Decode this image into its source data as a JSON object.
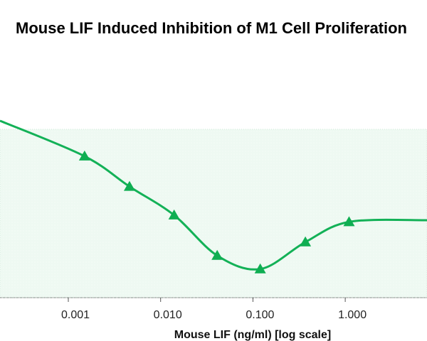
{
  "chart_data": {
    "type": "line",
    "title": "Mouse LIF Induced Inhibition of M1 Cell Proliferation",
    "xlabel": "Mouse LIF (ng/ml) [log scale]",
    "ylabel": "",
    "xscale": "log",
    "xticks": [
      0.001,
      0.01,
      0.1,
      1.0
    ],
    "xtick_labels": [
      "0.001",
      "0.010",
      "0.100",
      "1.000"
    ],
    "ylim": [
      0,
      100
    ],
    "grid": false,
    "series": [
      {
        "marker": "triangle",
        "color": "#13b157",
        "x": [
          0.0015,
          0.0046,
          0.014,
          0.041,
          0.12,
          0.37,
          1.1
        ],
        "y": [
          84,
          66,
          49,
          25,
          17,
          33,
          45
        ]
      }
    ],
    "plot_background": "#eef9f2"
  }
}
